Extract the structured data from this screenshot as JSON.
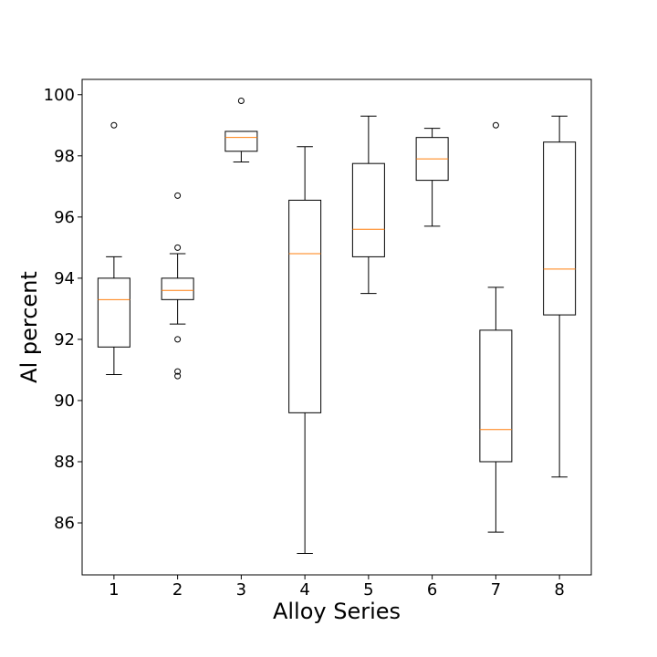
{
  "chart_data": {
    "type": "box",
    "title": "",
    "xlabel": "Alloy Series",
    "ylabel": "Al percent",
    "ylim": [
      84.3,
      100.5
    ],
    "yticks": [
      86,
      88,
      90,
      92,
      94,
      96,
      98,
      100
    ],
    "grid": false,
    "colors": {
      "box": "#000000",
      "median": "#ff7f0e"
    },
    "series": [
      {
        "category": "1",
        "whisker_low": 90.85,
        "q1": 91.75,
        "median": 93.3,
        "q3": 94.0,
        "whisker_high": 94.7,
        "outliers": [
          99.0
        ]
      },
      {
        "category": "2",
        "whisker_low": 92.5,
        "q1": 93.3,
        "median": 93.6,
        "q3": 94.0,
        "whisker_high": 94.8,
        "outliers": [
          96.7,
          95.0,
          92.0,
          90.95,
          90.8
        ]
      },
      {
        "category": "3",
        "whisker_low": 97.8,
        "q1": 98.15,
        "median": 98.6,
        "q3": 98.8,
        "whisker_high": 98.8,
        "outliers": [
          99.8
        ]
      },
      {
        "category": "4",
        "whisker_low": 85.0,
        "q1": 89.6,
        "median": 94.8,
        "q3": 96.55,
        "whisker_high": 98.3,
        "outliers": []
      },
      {
        "category": "5",
        "whisker_low": 93.5,
        "q1": 94.7,
        "median": 95.6,
        "q3": 97.75,
        "whisker_high": 99.3,
        "outliers": []
      },
      {
        "category": "6",
        "whisker_low": 95.7,
        "q1": 97.2,
        "median": 97.9,
        "q3": 98.6,
        "whisker_high": 98.9,
        "outliers": []
      },
      {
        "category": "7",
        "whisker_low": 85.7,
        "q1": 88.0,
        "median": 89.05,
        "q3": 92.3,
        "whisker_high": 93.7,
        "outliers": [
          99.0
        ]
      },
      {
        "category": "8",
        "whisker_low": 87.5,
        "q1": 92.8,
        "median": 94.3,
        "q3": 98.45,
        "whisker_high": 99.3,
        "outliers": []
      }
    ]
  }
}
